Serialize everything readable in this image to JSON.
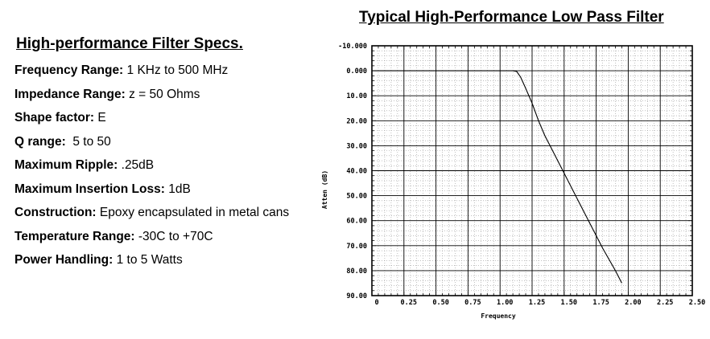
{
  "specs": {
    "title": "High-performance Filter Specs.",
    "items": [
      {
        "label": "Frequency Range:",
        "value": " 1 KHz to 500 MHz"
      },
      {
        "label": "Impedance Range:",
        "value": " z = 50 Ohms"
      },
      {
        "label": "Shape factor:",
        "value": " E"
      },
      {
        "label": "Q range:",
        "value": "  5 to 50"
      },
      {
        "label": "Maximum Ripple:",
        "value": " .25dB"
      },
      {
        "label": "Maximum Insertion Loss:",
        "value": " 1dB"
      },
      {
        "label": "Construction:",
        "value": " Epoxy encapsulated in metal cans"
      },
      {
        "label": "Temperature Range:",
        "value": " -30C to +70C"
      },
      {
        "label": "Power Handling:",
        "value": " 1 to 5 Watts"
      }
    ]
  },
  "chart_data": {
    "type": "line",
    "title": "Typical High-Performance Low Pass Filter",
    "xlabel": "Frequency",
    "ylabel": "Atten (dB)",
    "xlim": [
      0,
      2.5
    ],
    "ylim": [
      -10,
      90
    ],
    "y_inverted": true,
    "grid": true,
    "x_ticks": [
      "0",
      "0.25",
      "0.50",
      "0.75",
      "1.00",
      "1.25",
      "1.50",
      "1.75",
      "2.00",
      "2.25",
      "2.50"
    ],
    "y_ticks": [
      "-10.000",
      "0.000",
      "10.00",
      "20.00",
      "30.00",
      "40.00",
      "50.00",
      "60.00",
      "70.00",
      "80.00",
      "90.00"
    ],
    "series": [
      {
        "color": "#000000",
        "x": [
          0,
          0.5,
          1.0,
          1.1,
          1.13,
          1.16,
          1.2,
          1.25,
          1.3,
          1.35,
          1.4,
          1.5,
          1.6,
          1.7,
          1.8,
          1.9,
          1.95
        ],
        "y": [
          0,
          0,
          0,
          0,
          0.3,
          2.5,
          7,
          13,
          20,
          26,
          31,
          41,
          51,
          61,
          71,
          80,
          85
        ]
      }
    ]
  }
}
